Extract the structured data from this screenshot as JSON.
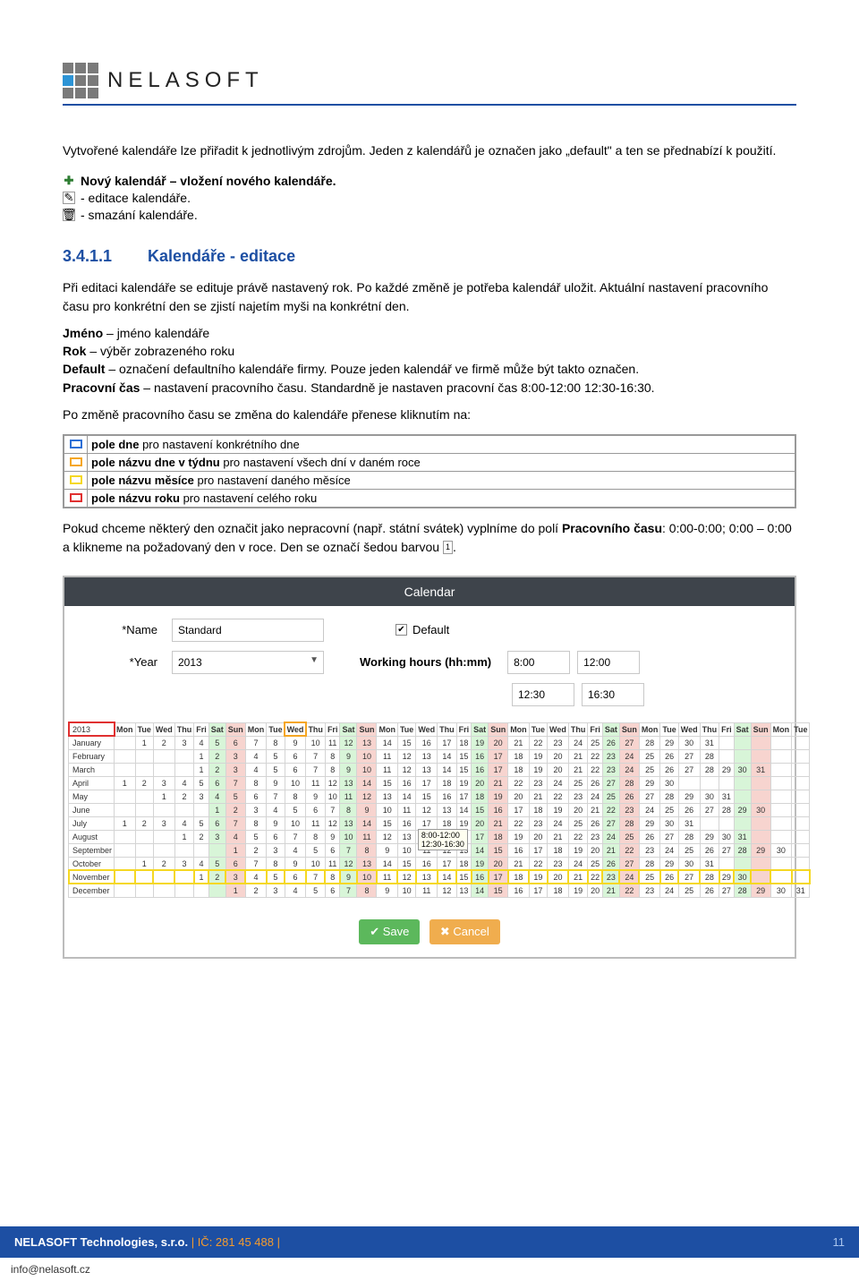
{
  "brand": "NELASOFT",
  "intro": "Vytvořené kalendáře lze přiřadit k jednotlivým zdrojům. Jeden z kalendářů je označen jako „default\" a ten se přednabízí k použití.",
  "iconLines": {
    "new": "Nový kalendář – vložení nového kalendáře.",
    "edit": " - editace kalendáře.",
    "del": " - smazání kalendáře."
  },
  "section": {
    "num": "3.4.1.1",
    "title": "Kalendáře - editace"
  },
  "para1": "Při editaci kalendáře se edituje právě nastavený rok. Po každé změně je potřeba kalendář uložit. Aktuální nastavení pracovního času pro konkrétní den se zjistí najetím myši na konkrétní den.",
  "defs": [
    {
      "b": "Jméno",
      "t": " – jméno kalendáře"
    },
    {
      "b": "Rok",
      "t": " – výběr zobrazeného roku"
    },
    {
      "b": "Default",
      "t": " – označení defaultního kalendáře firmy. Pouze jeden kalendář ve firmě může být takto označen."
    },
    {
      "b": "Pracovní čas",
      "t": " – nastavení pracovního času. Standardně je nastaven pracovní čas 8:00-12:00 12:30-16:30."
    }
  ],
  "paraChange": "Po změně pracovního času se změna do kalendáře přenese kliknutím na:",
  "boxTable": [
    {
      "cls": "b-blue",
      "b": "pole dne",
      "t": " pro nastavení konkrétního dne"
    },
    {
      "cls": "b-orange",
      "b": "pole názvu dne v týdnu",
      "t": " pro nastavení všech dní v daném roce"
    },
    {
      "cls": "b-yellow",
      "b": "pole názvu měsíce",
      "t": " pro nastavení daného měsíce"
    },
    {
      "cls": "b-red",
      "b": "pole názvu roku",
      "t": " pro nastavení celého roku"
    }
  ],
  "paraHoliday1": "Pokud chceme některý den označit jako nepracovní (např. státní svátek) vyplníme do polí ",
  "paraHolidayBold": "Pracovního času",
  "paraHoliday2": ": 0:00-0:00; 0:00 – 0:00 a klikneme na požadovaný den v roce. Den se označí šedou barvou ",
  "screenshot": {
    "header": "Calendar",
    "labels": {
      "name": "*Name",
      "year": "*Year",
      "default": "Default",
      "working": "Working hours (hh:mm)"
    },
    "values": {
      "name": "Standard",
      "year": "2013",
      "defaultChecked": "☑",
      "wh": [
        "8:00",
        "12:00",
        "12:30",
        "16:30"
      ]
    },
    "days": [
      "Mon",
      "Tue",
      "Wed",
      "Thu",
      "Fri",
      "Sat",
      "Sun"
    ],
    "months": [
      "January",
      "February",
      "March",
      "April",
      "May",
      "June",
      "July",
      "August",
      "September",
      "October",
      "November",
      "December"
    ],
    "yearLabel": "2013",
    "monthStart": [
      1,
      4,
      4,
      0,
      2,
      5,
      0,
      3,
      6,
      1,
      4,
      6
    ],
    "monthLen": [
      31,
      28,
      31,
      30,
      31,
      30,
      31,
      31,
      30,
      31,
      30,
      31
    ],
    "tooltip": [
      "8:00-12:00",
      "12:30-16:30"
    ],
    "btnSave": "Save",
    "btnCancel": "Cancel"
  },
  "footer": {
    "company": "NELASOFT Technologies, s.r.o. ",
    "sep": "| ",
    "ic": "IČ: 281 45 488 ",
    "page": "11"
  },
  "email": "info@nelasoft.cz",
  "dayBadge": "1",
  "colors": {
    "heading": "#1d4fa3",
    "footerBg": "#1d4fa3",
    "accentOrange": "#f59b2d",
    "sat": "#d8f5d8",
    "sun": "#f7d4cf",
    "ssHeader": "#3e444b"
  }
}
